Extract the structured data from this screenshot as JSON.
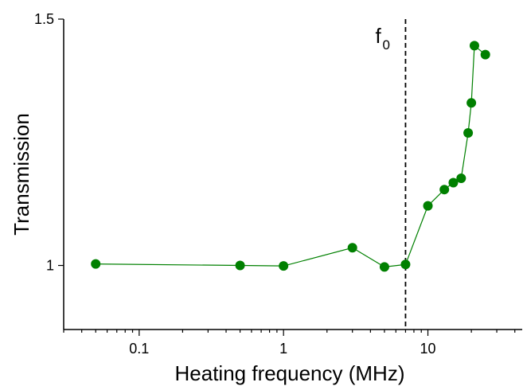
{
  "chart_data": {
    "type": "scatter",
    "xlabel": "Heating frequency (MHz)",
    "ylabel": "Transmission",
    "x_scale": "log",
    "xlim": [
      0.03,
      45
    ],
    "ylim": [
      0.87,
      1.5
    ],
    "grid": false,
    "legend": "none",
    "x_ticks": [
      {
        "value": 0.1,
        "label": "0.1"
      },
      {
        "value": 1,
        "label": "1"
      },
      {
        "value": 10,
        "label": "10"
      }
    ],
    "y_ticks": [
      {
        "value": 1.0,
        "label": "1"
      },
      {
        "value": 1.5,
        "label": "1.5"
      }
    ],
    "series": [
      {
        "color": "#008000",
        "line": true,
        "points": [
          {
            "x": 0.05,
            "y": 1.003
          },
          {
            "x": 0.5,
            "y": 1.0
          },
          {
            "x": 1.0,
            "y": 0.999
          },
          {
            "x": 3.0,
            "y": 1.036
          },
          {
            "x": 5.0,
            "y": 0.997
          },
          {
            "x": 7.0,
            "y": 1.002
          },
          {
            "x": 10.0,
            "y": 1.121
          },
          {
            "x": 13.0,
            "y": 1.154
          },
          {
            "x": 15.0,
            "y": 1.168
          },
          {
            "x": 17.0,
            "y": 1.177
          },
          {
            "x": 19.0,
            "y": 1.269
          },
          {
            "x": 20.0,
            "y": 1.33
          },
          {
            "x": 21.0,
            "y": 1.446
          },
          {
            "x": 25.0,
            "y": 1.428
          }
        ]
      }
    ],
    "annotations": [
      {
        "type": "vline",
        "x": 7.0,
        "style": "dashed",
        "label": "f",
        "label_subscript": "0"
      }
    ]
  }
}
